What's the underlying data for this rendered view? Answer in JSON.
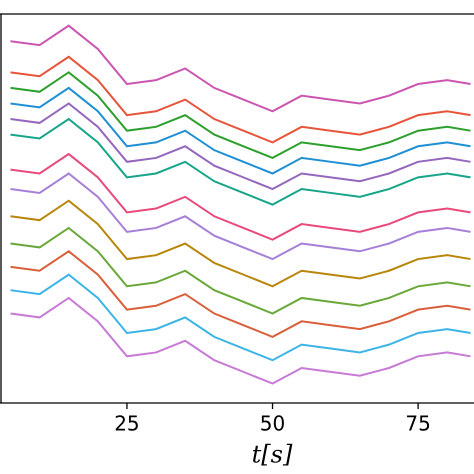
{
  "chart_data": {
    "type": "line",
    "xlabel": "t[s]",
    "x": [
      5,
      10,
      15,
      20,
      25,
      30,
      35,
      40,
      45,
      50,
      55,
      60,
      65,
      70,
      75,
      80,
      84
    ],
    "xlim": [
      3.2,
      84.6
    ],
    "xticks": [
      25,
      50,
      75
    ],
    "ylim": [
      0,
      100
    ],
    "series": [
      {
        "color": "#cc55b0",
        "values": [
          93,
          92,
          97,
          91,
          82,
          83,
          86,
          81,
          78,
          75,
          79,
          78,
          77,
          79,
          82,
          83,
          82
        ]
      },
      {
        "color": "#e6553a",
        "values": [
          85,
          84,
          89,
          83,
          74,
          75,
          78,
          73,
          70,
          67,
          71,
          70,
          69,
          71,
          74,
          75,
          74
        ]
      },
      {
        "color": "#2ca02c",
        "values": [
          81,
          80,
          85,
          79,
          70,
          71,
          74,
          69,
          66,
          63,
          67,
          66,
          65,
          67,
          70,
          71,
          70
        ]
      },
      {
        "color": "#1f8fd4",
        "values": [
          77,
          76,
          81,
          75,
          66,
          67,
          70,
          65,
          62,
          59,
          63,
          62,
          61,
          63,
          66,
          67,
          66
        ]
      },
      {
        "color": "#9467bd",
        "values": [
          73,
          72,
          77,
          71,
          62,
          63,
          66,
          61,
          58,
          55,
          59,
          58,
          57,
          59,
          62,
          63,
          62
        ]
      },
      {
        "color": "#17a589",
        "values": [
          69,
          68,
          73,
          67,
          58,
          59,
          62,
          57,
          54,
          51,
          55,
          54,
          53,
          55,
          58,
          59,
          58
        ]
      },
      {
        "color": "#e84a7a",
        "values": [
          60,
          59,
          64,
          58,
          49,
          50,
          53,
          48,
          45,
          42,
          46,
          45,
          44,
          46,
          49,
          50,
          49
        ]
      },
      {
        "color": "#a57fd8",
        "values": [
          55,
          54,
          59,
          53,
          44,
          45,
          48,
          43,
          40,
          37,
          41,
          40,
          39,
          41,
          44,
          45,
          44
        ]
      },
      {
        "color": "#b8860b",
        "values": [
          48,
          47,
          52,
          46,
          37,
          38,
          41,
          36,
          33,
          30,
          34,
          33,
          32,
          34,
          37,
          38,
          37
        ]
      },
      {
        "color": "#6aa83a",
        "values": [
          41,
          40,
          45,
          39,
          30,
          31,
          34,
          29,
          26,
          23,
          27,
          26,
          25,
          27,
          30,
          31,
          30
        ]
      },
      {
        "color": "#d95f3b",
        "values": [
          35,
          34,
          39,
          33,
          24,
          25,
          28,
          23,
          20,
          17,
          21,
          20,
          19,
          21,
          24,
          25,
          24
        ]
      },
      {
        "color": "#3cb4e6",
        "values": [
          29,
          28,
          33,
          27,
          18,
          19,
          22,
          17,
          14,
          11,
          15,
          14,
          13,
          15,
          18,
          19,
          18
        ]
      },
      {
        "color": "#c77ad6",
        "values": [
          23,
          22,
          27,
          21,
          12,
          13,
          16,
          11,
          8,
          5,
          9,
          8,
          7,
          9,
          12,
          13,
          12
        ]
      }
    ]
  }
}
